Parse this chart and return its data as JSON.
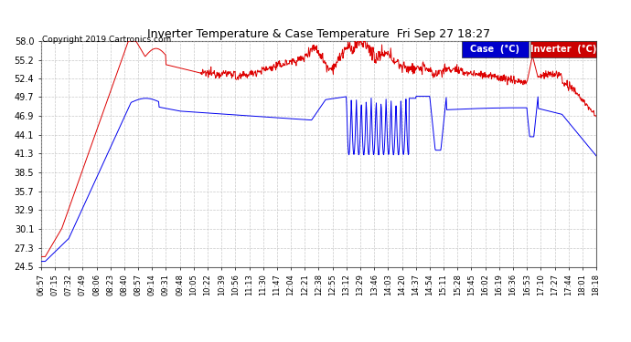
{
  "title": "Inverter Temperature & Case Temperature  Fri Sep 27 18:27",
  "copyright": "Copyright 2019 Cartronics.com",
  "background_color": "#ffffff",
  "plot_bg_color": "#ffffff",
  "grid_color": "#bbbbbb",
  "y_ticks": [
    24.5,
    27.3,
    30.1,
    32.9,
    35.7,
    38.5,
    41.3,
    44.1,
    46.9,
    49.7,
    52.4,
    55.2,
    58.0
  ],
  "y_min": 24.5,
  "y_max": 58.0,
  "legend": [
    {
      "label": "Case  (°C)",
      "bg": "#0000cc",
      "fg": "#ffffff"
    },
    {
      "label": "Inverter  (°C)",
      "bg": "#cc0000",
      "fg": "#ffffff"
    }
  ],
  "x_labels": [
    "06:57",
    "07:15",
    "07:32",
    "07:49",
    "08:06",
    "08:23",
    "08:40",
    "08:57",
    "09:14",
    "09:31",
    "09:48",
    "10:05",
    "10:22",
    "10:39",
    "10:56",
    "11:13",
    "11:30",
    "11:47",
    "12:04",
    "12:21",
    "12:38",
    "12:55",
    "13:12",
    "13:29",
    "13:46",
    "14:03",
    "14:20",
    "14:37",
    "14:54",
    "15:11",
    "15:28",
    "15:45",
    "16:02",
    "16:19",
    "16:36",
    "16:53",
    "17:10",
    "17:27",
    "17:44",
    "18:01",
    "18:18"
  ],
  "case_color": "#0000ee",
  "inverter_color": "#dd0000"
}
